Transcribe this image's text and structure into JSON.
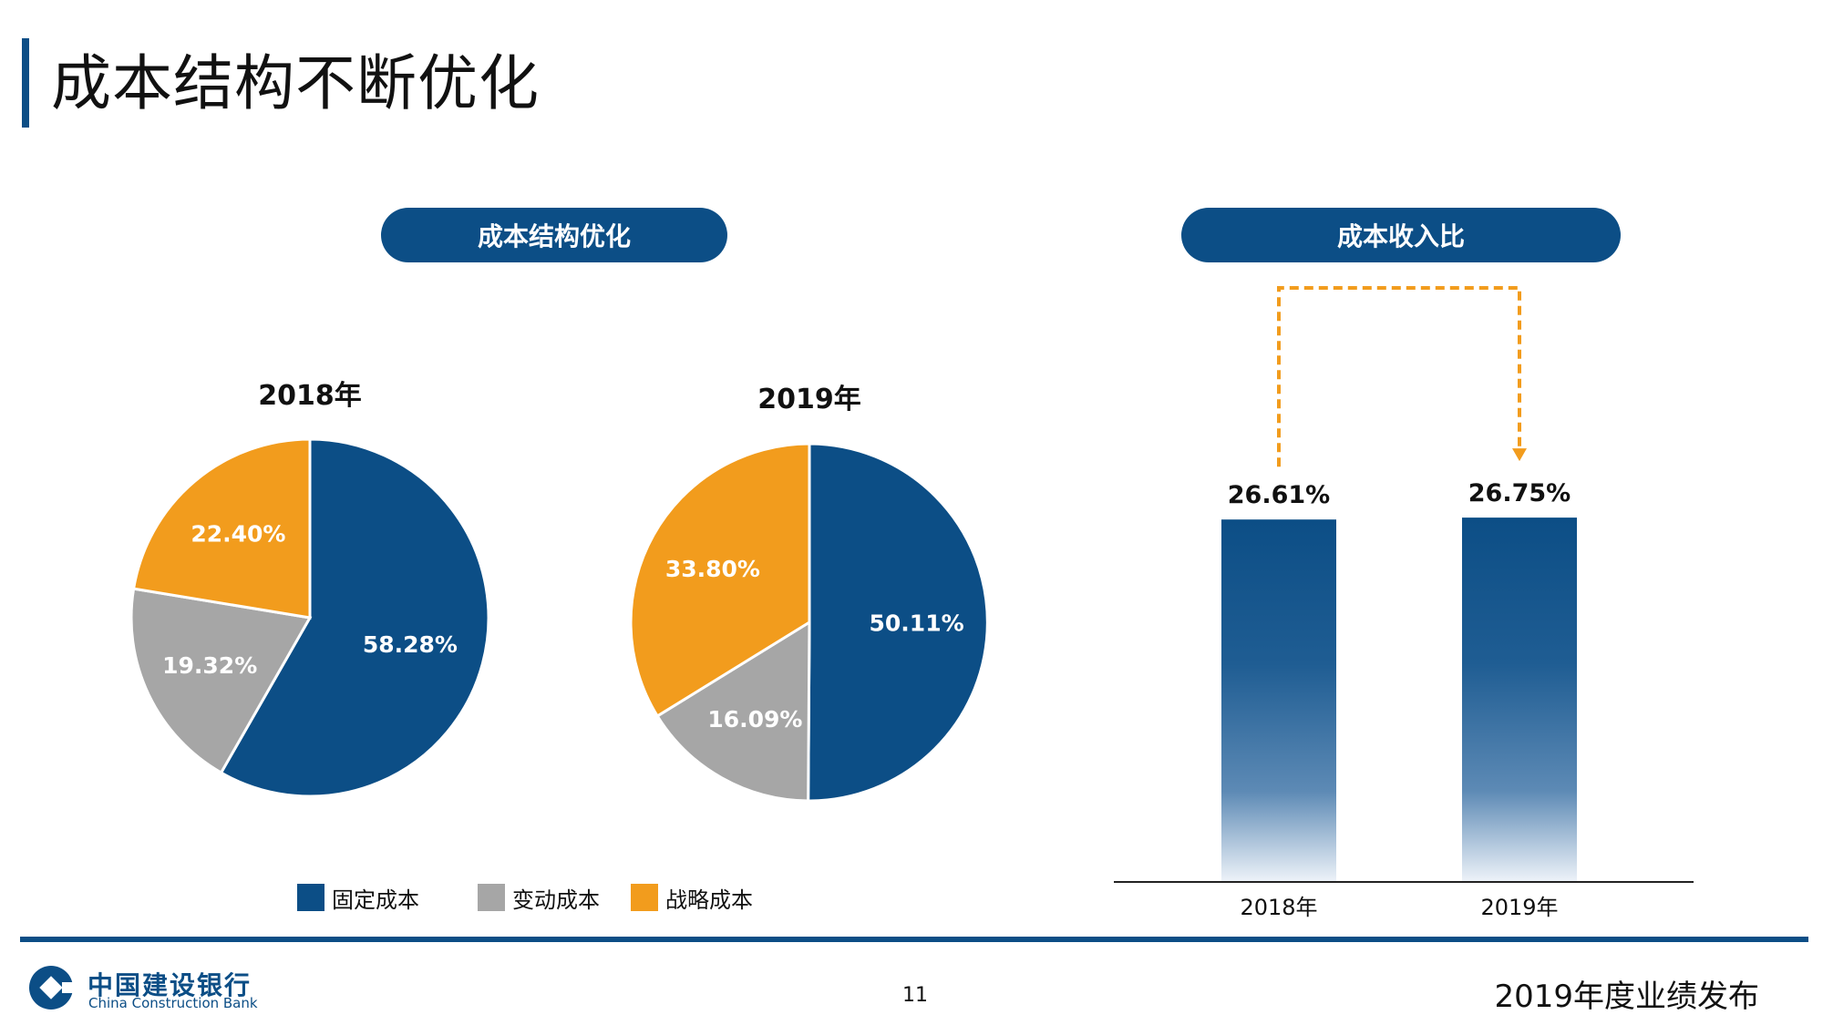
{
  "page": {
    "title": "成本结构不断优化",
    "page_number": "11",
    "report_title": "2019年度业绩发布",
    "logo_cn": "中国建设银行",
    "logo_en": "China Construction Bank"
  },
  "colors": {
    "fixed": "#0c4e86",
    "variable": "#a6a6a6",
    "strategic": "#f29c1d",
    "brand": "#0c4e86"
  },
  "chart_data": [
    {
      "type": "pie",
      "header": "成本结构优化",
      "title": "2018年",
      "legend": [
        "固定成本",
        "变动成本",
        "战略成本"
      ],
      "values": [
        58.28,
        19.32,
        22.4
      ],
      "labels": [
        "58.28%",
        "19.32%",
        "22.40%"
      ]
    },
    {
      "type": "pie",
      "title": "2019年",
      "legend": [
        "固定成本",
        "变动成本",
        "战略成本"
      ],
      "values": [
        50.11,
        16.09,
        33.8
      ],
      "labels": [
        "50.11%",
        "16.09%",
        "33.80%"
      ]
    },
    {
      "type": "bar",
      "header": "成本收入比",
      "categories": [
        "2018年",
        "2019年"
      ],
      "values": [
        26.61,
        26.75
      ],
      "labels": [
        "26.61%",
        "26.75%"
      ],
      "ylim": [
        0,
        30
      ]
    }
  ]
}
